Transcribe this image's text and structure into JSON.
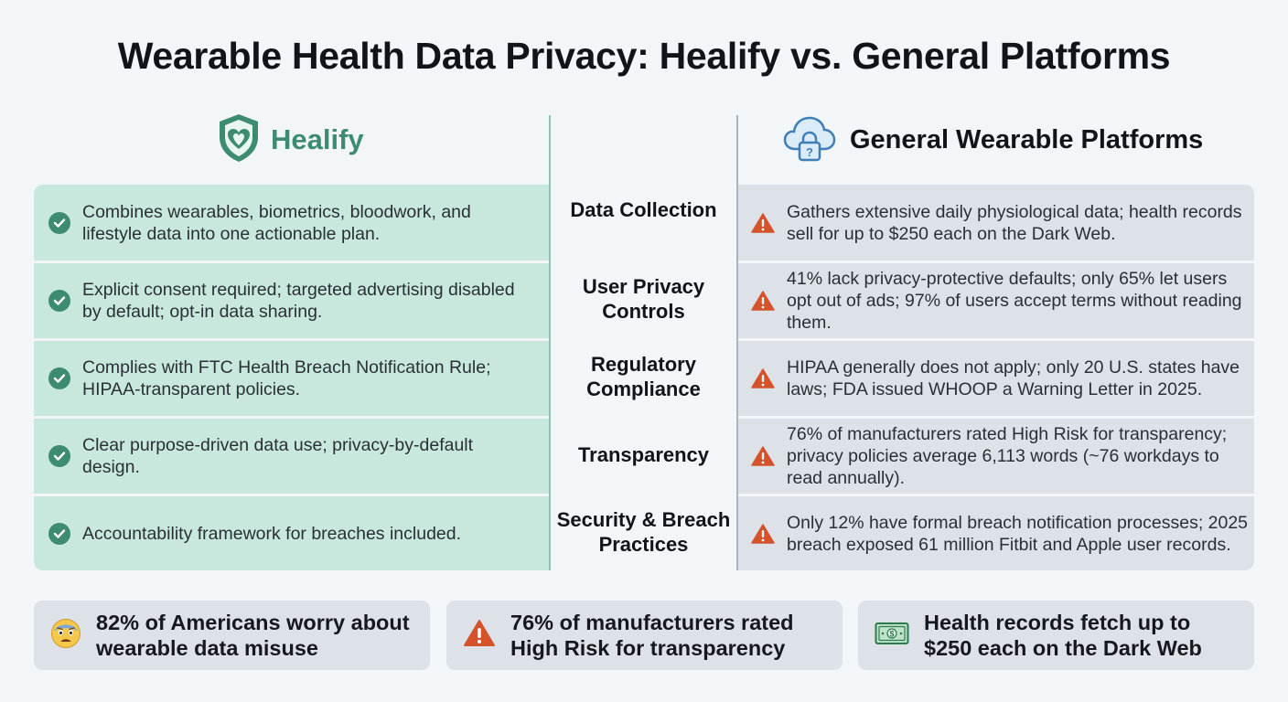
{
  "title": "Wearable Health Data Privacy: Healify vs. General Platforms",
  "brands": {
    "left": {
      "name": "Healify",
      "icon": "shield-heart-icon"
    },
    "right": {
      "name": "General Wearable Platforms",
      "icon": "cloud-lock-icon"
    }
  },
  "rows": [
    {
      "category": "Data Collection",
      "healify": "Combines wearables, biometrics, bloodwork, and lifestyle data into one actionable plan.",
      "general": "Gathers extensive daily physiological data; health records sell for up to $250 each on the Dark Web."
    },
    {
      "category": "User Privacy Controls",
      "healify": "Explicit consent required; targeted advertising disabled by default; opt-in data sharing.",
      "general": "41% lack privacy-protective defaults; only 65% let users opt out of ads; 97% of users accept terms without reading them."
    },
    {
      "category": "Regulatory Compliance",
      "healify": "Complies with FTC Health Breach Notification Rule; HIPAA-transparent policies.",
      "general": "HIPAA generally does not apply; only 20 U.S. states have laws; FDA issued WHOOP a Warning Letter in 2025."
    },
    {
      "category": "Transparency",
      "healify": "Clear purpose-driven data use; privacy-by-default design.",
      "general": "76% of manufacturers rated High Risk for transparency; privacy policies average 6,113 words (~76 workdays to read annually)."
    },
    {
      "category": "Security & Breach Practices",
      "healify": "Accountability framework for breaches included.",
      "general": "Only 12% have formal breach notification processes; 2025 breach exposed 61 million Fitbit and Apple user records."
    }
  ],
  "stats": [
    {
      "icon": "worried-face-icon",
      "text": "82% of Americans worry about wearable data misuse"
    },
    {
      "icon": "warning-icon",
      "text": "76% of manufacturers rated High Risk for transparency"
    },
    {
      "icon": "money-icon",
      "text": "Health records fetch up to $250 each on the Dark Web"
    }
  ],
  "colors": {
    "healify_green": "#3d8c72",
    "healify_bg": "#c8e8de",
    "general_bg": "#dde2e9",
    "warning_orange": "#d4532b"
  }
}
